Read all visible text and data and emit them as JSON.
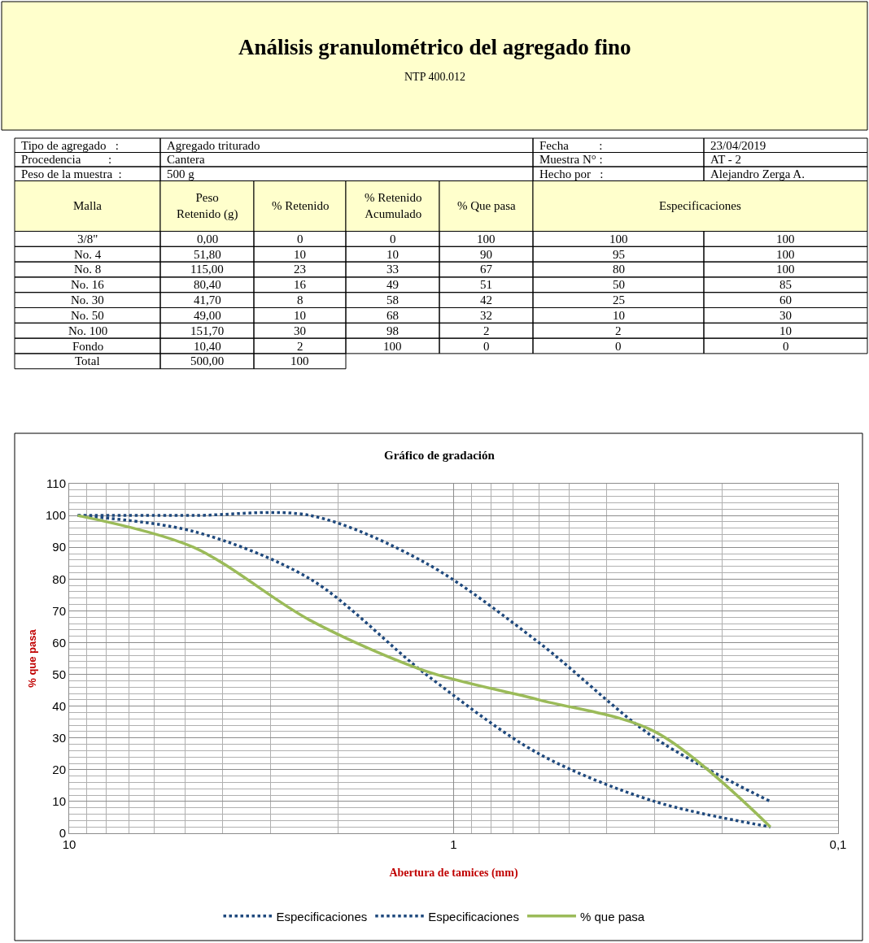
{
  "chart_data": [
    {
      "type": "other",
      "title": "Análisis granulométrico del agregado fino",
      "subtitle": "NTP 400.012",
      "annotations": [
        "Tipo de agregado   :",
        "Agregado triturado",
        "Fecha          :",
        "23/04/2019",
        "Procedencia         :",
        "Cantera",
        "Muestra N° :",
        "AT - 2",
        "Peso de la muestra  :",
        "500 g",
        "Hecho por   :",
        "Alejandro Zerga A."
      ],
      "categories": [
        "Malla",
        "Peso Retenido (g)",
        "% Retenido",
        "% Retenido Acumulado",
        "% Que pasa",
        "Especificaciones"
      ],
      "y_categories": [
        "3/8\"",
        "No. 4",
        "No. 8",
        "No. 16",
        "No. 30",
        "No. 50",
        "No. 100",
        "Fondo",
        "Total"
      ],
      "cell_labels": [
        [
          "0,00",
          "0",
          "0",
          "100",
          "100",
          "100"
        ],
        [
          "51,80",
          "10",
          "10",
          "90",
          "95",
          "100"
        ],
        [
          "115,00",
          "23",
          "33",
          "67",
          "80",
          "100"
        ],
        [
          "80,40",
          "16",
          "49",
          "51",
          "50",
          "85"
        ],
        [
          "41,70",
          "8",
          "58",
          "42",
          "25",
          "60"
        ],
        [
          "49,00",
          "10",
          "68",
          "32",
          "10",
          "30"
        ],
        [
          "151,70",
          "30",
          "98",
          "2",
          "2",
          "10"
        ],
        [
          "10,40",
          "2",
          "100",
          "0",
          "0",
          "0"
        ],
        [
          "500,00",
          "100",
          null,
          null,
          null,
          null
        ]
      ]
    },
    {
      "type": "line",
      "title": "Gráfico de gradación",
      "xlabel": "Abertura de tamices (mm)",
      "ylabel": "% que pasa",
      "log": "x",
      "x": [
        9.5,
        4.75,
        2.36,
        1.18,
        0.6,
        0.3,
        0.15
      ],
      "xlim": [
        10,
        0.1
      ],
      "xticks": [
        10,
        1,
        {
          "value": 0.1,
          "label": "0,1"
        }
      ],
      "ylim": [
        0,
        110
      ],
      "yticks": [
        0,
        10,
        20,
        30,
        40,
        50,
        60,
        70,
        80,
        90,
        100,
        110
      ],
      "grid": true,
      "legend": "bottom",
      "series": [
        {
          "name": "Especificaciones",
          "color": "#1f497d",
          "line_style": "dotted",
          "values": [
            100,
            95,
            80,
            50,
            25,
            10,
            2
          ]
        },
        {
          "name": "Especificaciones",
          "color": "#1f497d",
          "line_style": "dotted",
          "values": [
            100,
            100,
            100,
            85,
            60,
            30,
            10
          ]
        },
        {
          "name": "% que pasa",
          "color": "#9bbb59",
          "line_style": "solid",
          "values": [
            100,
            90,
            67,
            51,
            42,
            32,
            2
          ]
        }
      ]
    }
  ]
}
